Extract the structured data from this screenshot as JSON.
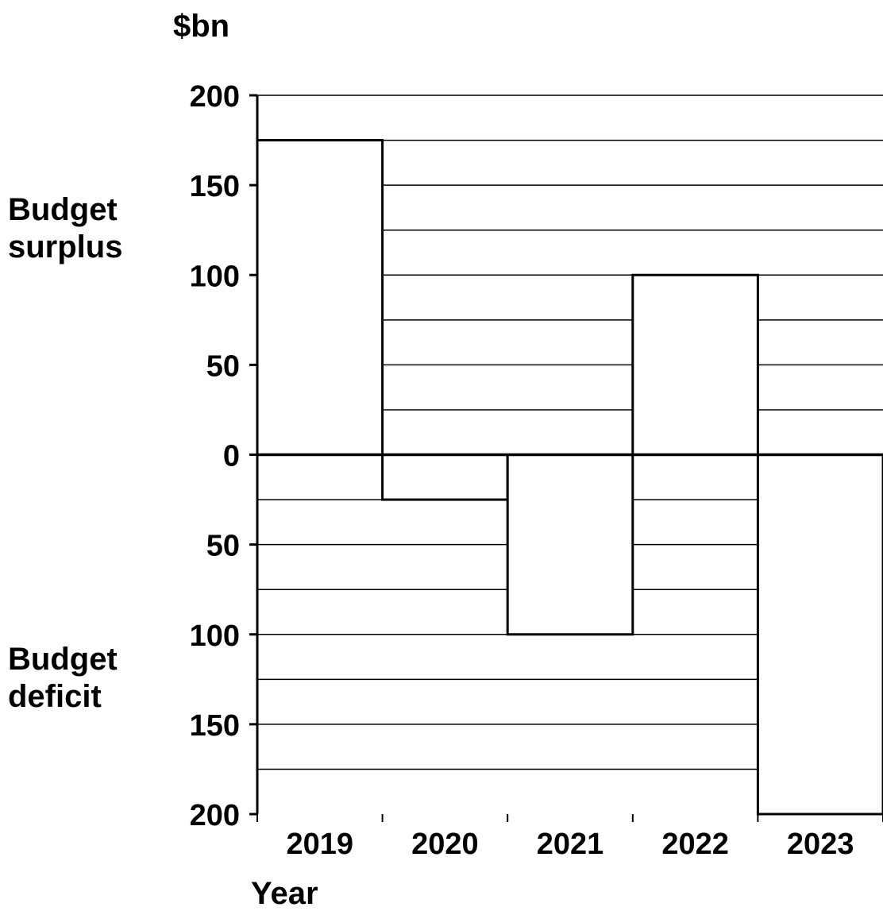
{
  "chart_data": {
    "type": "bar",
    "ylabel": "$bn",
    "xlabel": "Year",
    "categories": [
      "2019",
      "2020",
      "2021",
      "2022",
      "2023"
    ],
    "values": [
      175,
      -25,
      -100,
      100,
      -200
    ],
    "ylim": [
      -200,
      200
    ],
    "y_ticks": [
      {
        "value": 200,
        "label": "200"
      },
      {
        "value": 150,
        "label": "150"
      },
      {
        "value": 100,
        "label": "100"
      },
      {
        "value": 50,
        "label": "50"
      },
      {
        "value": 0,
        "label": "0"
      },
      {
        "value": -50,
        "label": "50"
      },
      {
        "value": -100,
        "label": "100"
      },
      {
        "value": -150,
        "label": "150"
      },
      {
        "value": -200,
        "label": "200"
      }
    ],
    "gridline_step": 25,
    "grid": true,
    "region_labels": {
      "surplus": [
        "Budget",
        "surplus"
      ],
      "deficit": [
        "Budget",
        "deficit"
      ]
    }
  }
}
